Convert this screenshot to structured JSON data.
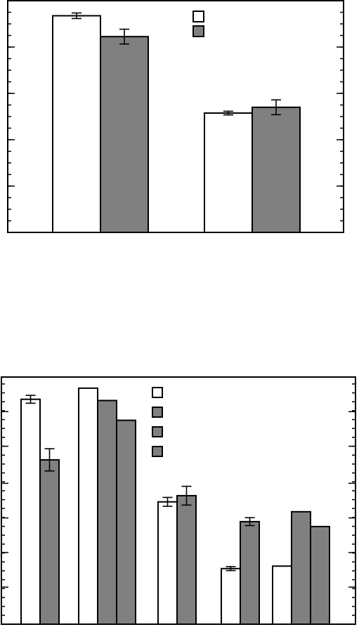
{
  "colors": {
    "open": "#ffffff",
    "filled": "#808080",
    "axis": "#000000"
  },
  "chart_data": [
    {
      "type": "bar",
      "title": "",
      "xlabel": "",
      "ylabel": "",
      "ylim": [
        0,
        100
      ],
      "grid": false,
      "legend_position": "top-center",
      "yticks_major": [
        0,
        20,
        40,
        60,
        80,
        100
      ],
      "yticks_minor_step": 5,
      "groups": [
        {
          "bars": [
            {
              "series": 0,
              "value": 93.5,
              "error": 1.2
            },
            {
              "series": 1,
              "value": 84.5,
              "error": 3.2
            }
          ]
        },
        {
          "bars": [
            {
              "series": 0,
              "value": 51.5,
              "error": 0.8
            },
            {
              "series": 1,
              "value": 54.0,
              "error": 3.2
            }
          ]
        }
      ],
      "series": [
        {
          "name": "",
          "fill": "open"
        },
        {
          "name": "",
          "fill": "filled"
        }
      ]
    },
    {
      "type": "bar",
      "title": "",
      "xlabel": "",
      "ylabel": "",
      "ylim": [
        0,
        100
      ],
      "grid": false,
      "legend_position": "top-center",
      "yticks_major": [
        0,
        15,
        29,
        43,
        57,
        72,
        86,
        100
      ],
      "yticks_minor_step": 3.6,
      "groups": [
        {
          "bars": [
            {
              "series": 0,
              "value": 91.0,
              "error": 1.6
            },
            {
              "series": 1,
              "value": 66.5,
              "error": 4.5
            }
          ]
        },
        {
          "bars": [
            {
              "series": 0,
              "value": 95.5,
              "error": null
            },
            {
              "series": 1,
              "value": 90.5,
              "error": null
            },
            {
              "series": 2,
              "value": 82.5,
              "error": null
            }
          ]
        },
        {
          "bars": [
            {
              "series": 0,
              "value": 49.5,
              "error": 1.8
            },
            {
              "series": 1,
              "value": 52.0,
              "error": 3.8
            }
          ]
        },
        {
          "bars": [
            {
              "series": 0,
              "value": 22.5,
              "error": 0.8
            },
            {
              "series": 1,
              "value": 41.5,
              "error": 1.6
            }
          ]
        },
        {
          "bars": [
            {
              "series": 0,
              "value": 23.5,
              "error": null
            },
            {
              "series": 1,
              "value": 45.5,
              "error": null
            },
            {
              "series": 2,
              "value": 39.5,
              "error": null
            }
          ]
        }
      ],
      "series": [
        {
          "name": "",
          "fill": "open"
        },
        {
          "name": "",
          "fill": "filled"
        },
        {
          "name": "",
          "fill": "filled"
        },
        {
          "name": "",
          "fill": "filled"
        }
      ]
    }
  ]
}
